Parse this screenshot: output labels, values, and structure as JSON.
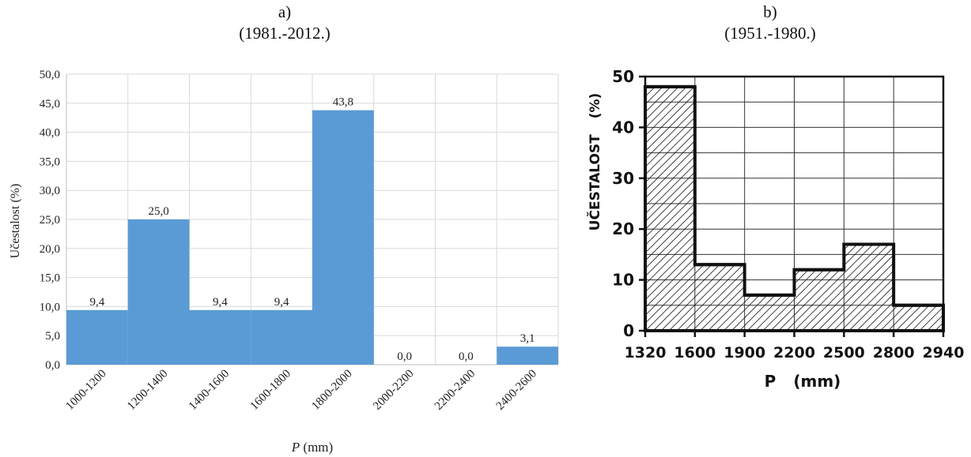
{
  "panel_a": {
    "title": "a)",
    "subtitle": "(1981.-2012.)",
    "xlabel_italic": "P",
    "xlabel_rest": " (mm)",
    "ylabel": "Učestalost (%)"
  },
  "panel_b": {
    "title": "b)",
    "subtitle": "(1951.-1980.)",
    "xlabel_main": "P",
    "xlabel_unit": "(mm)",
    "ylabel_main": "UČESTALOST",
    "ylabel_unit": "(%)"
  },
  "colors": {
    "bar_a": "#5b9bd5",
    "grid": "#d9d9d9",
    "axis_b": "#111111"
  },
  "chart_data": [
    {
      "type": "bar",
      "title": "a)",
      "subtitle": "(1981.-2012.)",
      "xlabel": "P (mm)",
      "ylabel": "Učestalost (%)",
      "categories": [
        "1000-1200",
        "1200-1400",
        "1400-1600",
        "1600-1800",
        "1800-2000",
        "2000-2200",
        "2200-2400",
        "2400-2600"
      ],
      "values": [
        9.4,
        25.0,
        9.4,
        9.4,
        43.8,
        0.0,
        0.0,
        3.1
      ],
      "data_labels": [
        "9,4",
        "25,0",
        "9,4",
        "9,4",
        "43,8",
        "0,0",
        "0,0",
        "3,1"
      ],
      "yticks": [
        "0,0",
        "5,0",
        "10,0",
        "15,0",
        "20,0",
        "25,0",
        "30,0",
        "35,0",
        "40,0",
        "45,0",
        "50,0"
      ],
      "ylim": [
        0,
        50
      ],
      "grid": true
    },
    {
      "type": "bar",
      "title": "b)",
      "subtitle": "(1951.-1980.)",
      "xlabel": "P (mm)",
      "ylabel": "UČESTALOST (%)",
      "bin_edges": [
        1320,
        1600,
        1900,
        2200,
        2500,
        2800,
        2940
      ],
      "x_tick_labels": [
        "1320",
        "1600",
        "1900",
        "2200",
        "2500",
        "2800",
        "2940"
      ],
      "values": [
        48,
        13,
        7,
        12,
        17,
        5
      ],
      "yticks": [
        "0",
        "10",
        "20",
        "30",
        "40",
        "50"
      ],
      "ylim": [
        0,
        50
      ],
      "grid": true
    }
  ]
}
